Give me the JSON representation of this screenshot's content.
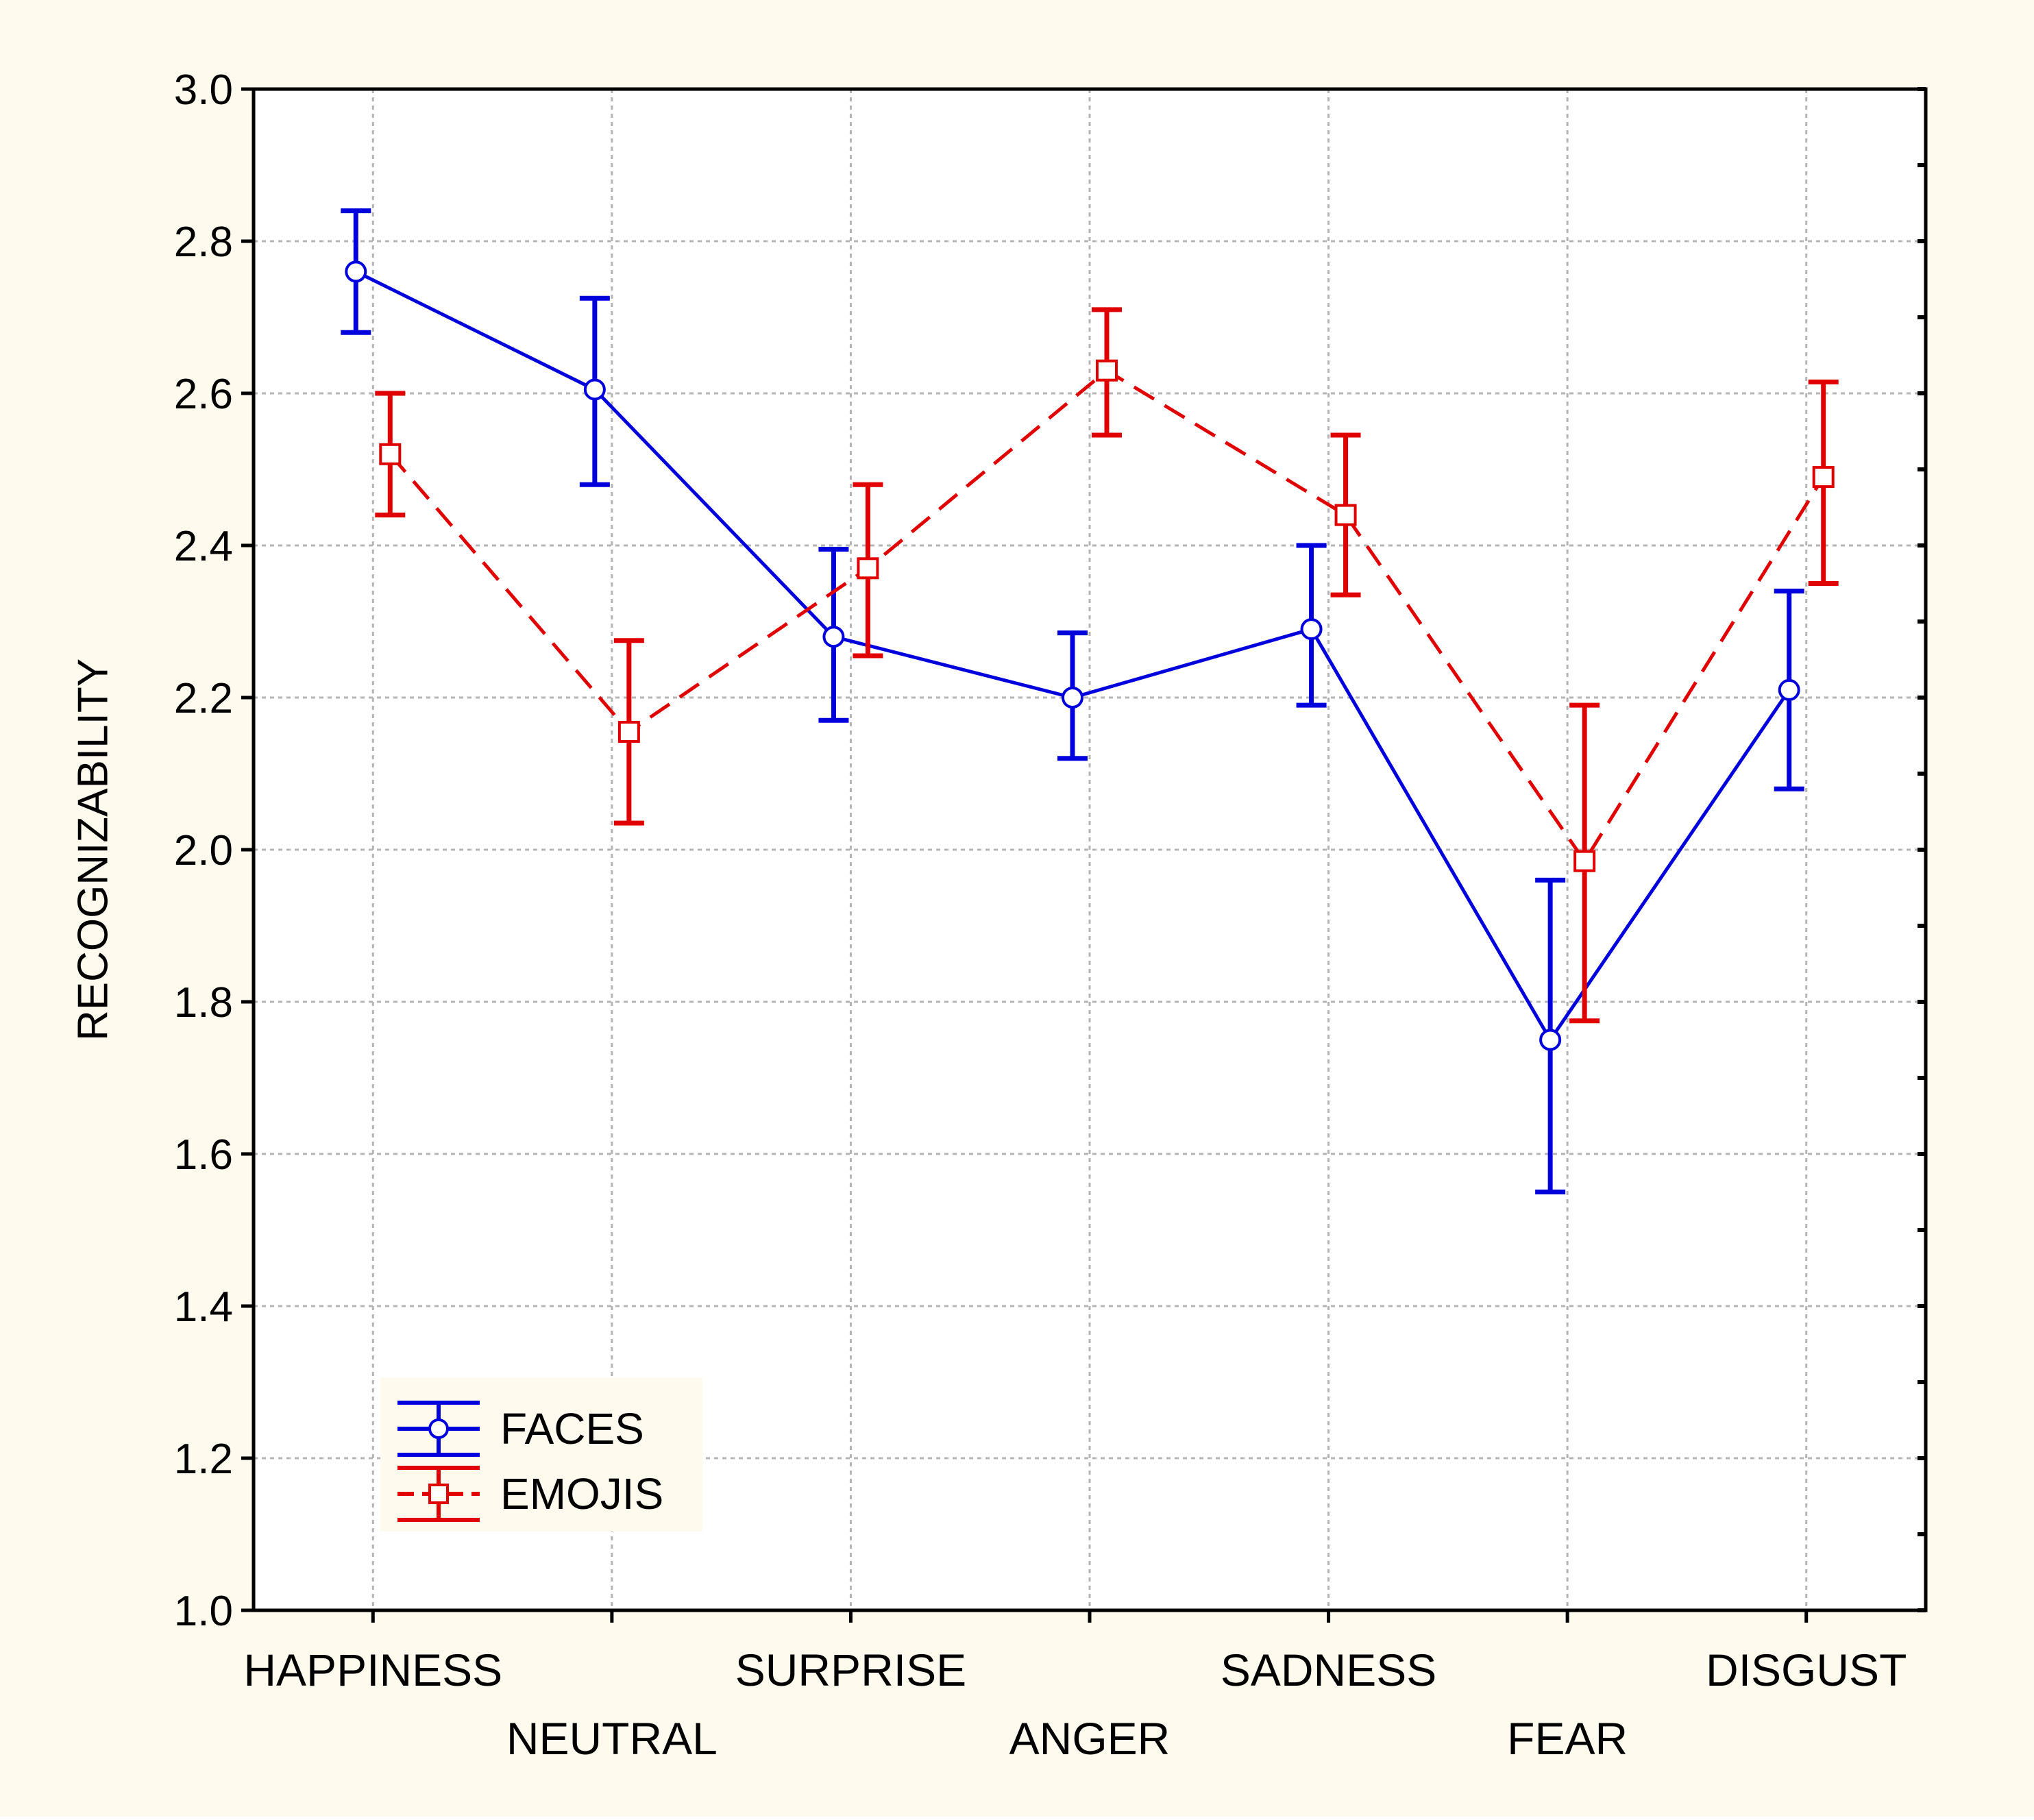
{
  "chart_data": {
    "type": "line",
    "title": "",
    "xlabel": "",
    "ylabel": "RECOGNIZABILITY",
    "ylim": [
      1.0,
      3.0
    ],
    "yticks": [
      "1.0",
      "1.2",
      "1.4",
      "1.6",
      "1.8",
      "2.0",
      "2.2",
      "2.4",
      "2.6",
      "2.8",
      "3.0"
    ],
    "grid": true,
    "legend_position": "bottom-left",
    "categories": [
      "HAPPINESS",
      "NEUTRAL",
      "SURPRISE",
      "ANGER",
      "SADNESS",
      "FEAR",
      "DISGUST"
    ],
    "series": [
      {
        "name": "FACES",
        "color": "#0000dd",
        "line_style": "solid",
        "marker": "circle",
        "values": [
          2.76,
          2.605,
          2.28,
          2.2,
          2.29,
          1.75,
          2.21
        ],
        "error_low": [
          2.68,
          2.48,
          2.17,
          2.12,
          2.19,
          1.55,
          2.08
        ],
        "error_high": [
          2.84,
          2.725,
          2.395,
          2.285,
          2.4,
          1.96,
          2.34
        ]
      },
      {
        "name": "EMOJIS",
        "color": "#e00000",
        "line_style": "dashed",
        "marker": "square",
        "values": [
          2.52,
          2.155,
          2.37,
          2.63,
          2.44,
          1.985,
          2.49
        ],
        "error_low": [
          2.44,
          2.035,
          2.255,
          2.545,
          2.335,
          1.775,
          2.35
        ],
        "error_high": [
          2.6,
          2.275,
          2.48,
          2.71,
          2.545,
          2.19,
          2.615
        ]
      }
    ]
  }
}
